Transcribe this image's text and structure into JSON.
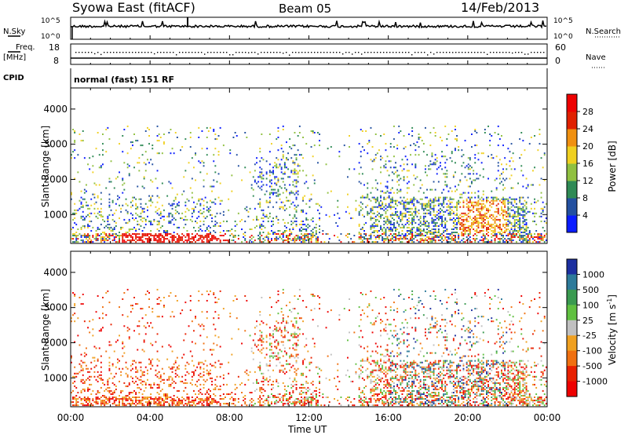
{
  "header": {
    "station": "Syowa East (fitACF)",
    "beam": "Beam 05",
    "date": "14/Feb/2013"
  },
  "top_panels": {
    "nsky_label": "N.Sky",
    "nsky_ticks": [
      "10^5",
      "10^0"
    ],
    "nsearch_label": "N.Search",
    "nsearch_ticks": [
      "10^5",
      "10^0"
    ],
    "freq_label_top": "Freq.",
    "freq_label_unit": "[MHz]",
    "freq_ticks": [
      "18",
      "8"
    ],
    "nave_label": "Nave",
    "nave_ticks": [
      "60",
      "0"
    ],
    "cpid_label": "CPID",
    "cpid_text": "normal (fast) 151 RF"
  },
  "chart_data": [
    {
      "type": "heatmap",
      "title": "",
      "ylabel": "Slant Range [km]",
      "xlabel": "",
      "yticks": [
        "1000",
        "2000",
        "3000",
        "4000"
      ],
      "ylim": [
        180,
        4600
      ],
      "colorbar_label": "Power [dB]",
      "colorbar_ticks": [
        "4",
        "8",
        "12",
        "16",
        "20",
        "24",
        "28"
      ],
      "colorbar_colors": [
        "#0a1cff",
        "#2350a0",
        "#2f8a55",
        "#90c040",
        "#f0d020",
        "#f09010",
        "#e02000",
        "#ee0000"
      ]
    },
    {
      "type": "heatmap",
      "title": "",
      "ylabel": "Slant Range [km]",
      "xlabel": "Time UT",
      "xticks": [
        "00:00",
        "04:00",
        "08:00",
        "12:00",
        "16:00",
        "20:00",
        "00:00"
      ],
      "yticks": [
        "1000",
        "2000",
        "3000",
        "4000"
      ],
      "ylim": [
        180,
        4600
      ],
      "colorbar_label": "Velocity  [m s",
      "colorbar_label_sup": "-1",
      "colorbar_label_end": "]",
      "colorbar_ticks": [
        "1000",
        "500",
        "100",
        "25",
        "-25",
        "-100",
        "-500",
        "-1000"
      ],
      "colorbar_colors": [
        "#1c2fa0",
        "#2d7a9a",
        "#3a9a50",
        "#60c040",
        "#c0c0c0",
        "#f0a020",
        "#f07010",
        "#e82000",
        "#ee0000"
      ]
    }
  ]
}
